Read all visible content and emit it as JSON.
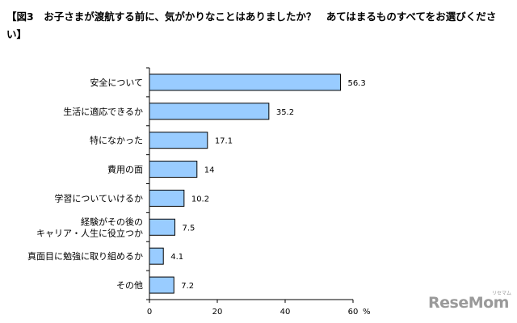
{
  "chart_data": {
    "type": "bar",
    "orientation": "horizontal",
    "title": "【図3　お子さまが渡航する前に、気がかりなことはありましたか？　あてはまるものすべてをお選びください】",
    "categories": [
      "安全について",
      "生活に適応できるか",
      "特になかった",
      "費用の面",
      "学習についていけるか",
      "経験がその後の\nキャリア・人生に役立つか",
      "真面目に勉強に取り組めるか",
      "その他"
    ],
    "values": [
      56.3,
      35.2,
      17.1,
      14,
      10.2,
      7.5,
      4.1,
      7.2
    ],
    "value_labels": [
      "56.3",
      "35.2",
      "17.1",
      "14",
      "10.2",
      "7.5",
      "4.1",
      "7.2"
    ],
    "xlim": [
      0,
      60
    ],
    "xticks": [
      "0",
      "20",
      "40",
      "60"
    ],
    "x_unit": "%",
    "bar_color": "#99CCFF",
    "bar_edge_color": "#000000",
    "grid": false
  },
  "watermark": {
    "main": "ReseMom",
    "ruby": "リセマム"
  }
}
